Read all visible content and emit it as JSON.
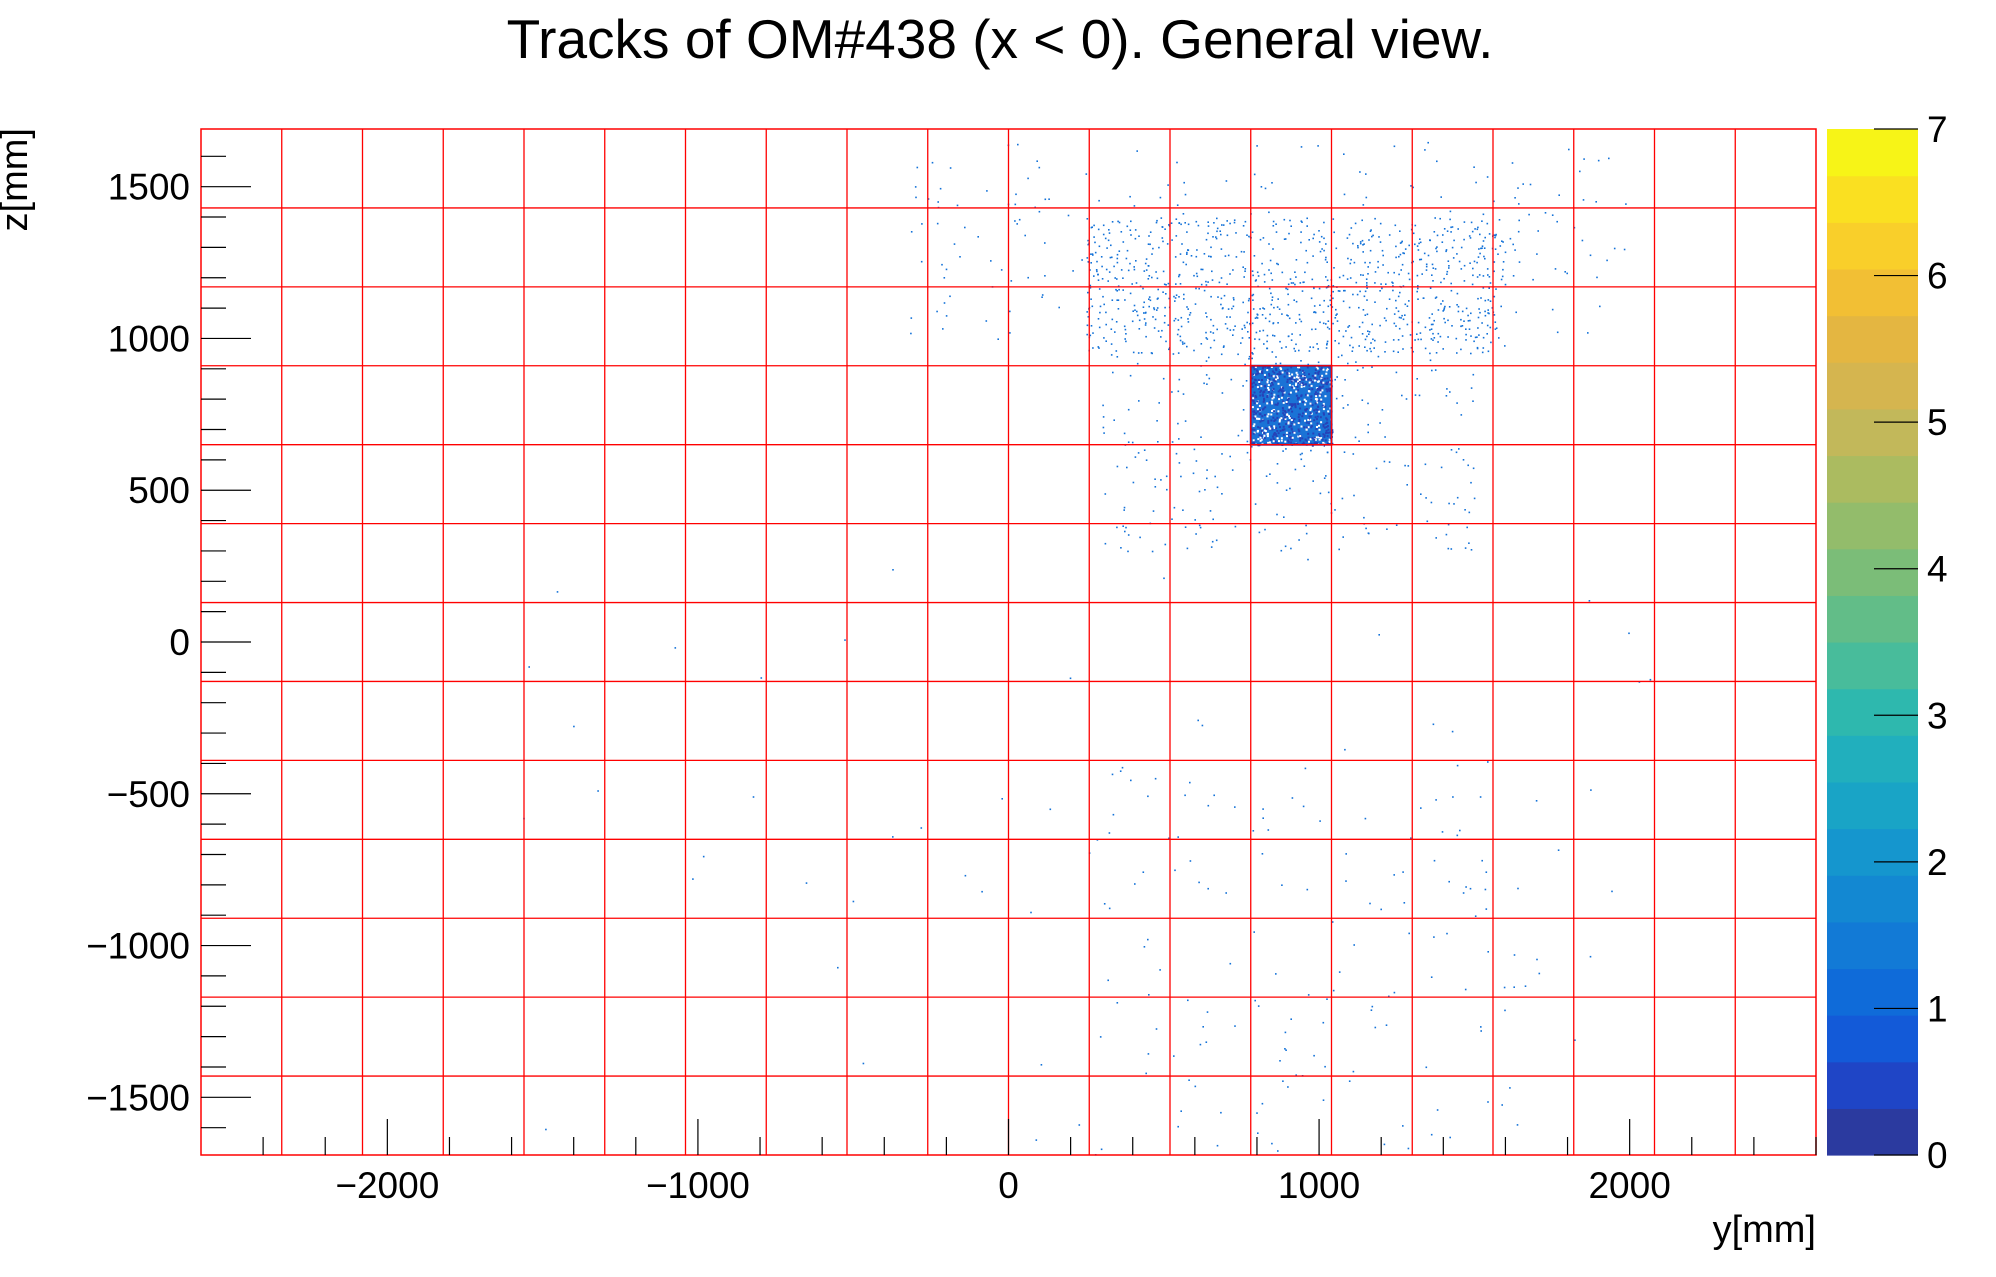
{
  "chart_data": {
    "type": "heatmap",
    "title": "Tracks of OM#438 (x < 0). General view.",
    "xlabel": "y[mm]",
    "ylabel": "z[mm]",
    "xlim": [
      -2600,
      2600
    ],
    "ylim": [
      -1690,
      1690
    ],
    "x_ticks": [
      -2000,
      -1000,
      0,
      1000,
      2000
    ],
    "x_tick_labels": [
      "−2000",
      "−1000",
      "0",
      "1000",
      "2000"
    ],
    "y_ticks": [
      -1500,
      -1000,
      -500,
      0,
      500,
      1000,
      1500
    ],
    "y_tick_labels": [
      "−1500",
      "−1000",
      "−500",
      "0",
      "500",
      "1000",
      "1500"
    ],
    "colorbar": {
      "min": 0,
      "max": 7,
      "ticks": [
        0,
        1,
        2,
        3,
        4,
        5,
        6,
        7
      ],
      "tick_labels": [
        "0",
        "1",
        "2",
        "3",
        "4",
        "5",
        "6",
        "7"
      ],
      "palette": [
        "#2b3a9f",
        "#1f45c6",
        "#135ad8",
        "#0f6bd9",
        "#127ad6",
        "#1388d2",
        "#1596ce",
        "#19a4c6",
        "#21afbd",
        "#2eb8ae",
        "#48bc9b",
        "#62bd88",
        "#7bbd78",
        "#93bc6b",
        "#abbb60",
        "#c2b85a",
        "#d5b54f",
        "#e4b641",
        "#f2bf34",
        "#f9cf2a",
        "#fae021",
        "#f7f417"
      ]
    },
    "grid_lines": {
      "color": "#ff0000",
      "y_positions": [
        -2340,
        -2080,
        -1820,
        -1560,
        -1300,
        -1040,
        -780,
        -520,
        -260,
        0,
        260,
        520,
        780,
        1040,
        1300,
        1560,
        1820,
        2080,
        2340
      ],
      "z_positions": [
        -1430,
        -1170,
        -910,
        -650,
        -390,
        -130,
        130,
        390,
        650,
        910,
        1170,
        1430
      ]
    },
    "dense_region": {
      "y_range": [
        780,
        1040
      ],
      "z_range": [
        650,
        910
      ],
      "value": 1
    },
    "point_color": "#1372d8",
    "grid": true
  }
}
